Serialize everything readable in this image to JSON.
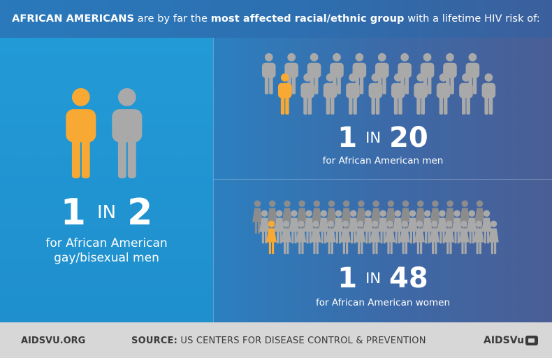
{
  "header": {
    "part1": "AFRICAN AMERICANS",
    "part2": " are by far the ",
    "part3": "most affected racial/ethnic group",
    "part4": " with a lifetime HIV risk of:"
  },
  "stats": [
    {
      "num": "1",
      "in": "IN",
      "den": "2",
      "caption_line1": "for African American",
      "caption_line2": "gay/bisexual men"
    },
    {
      "num": "1",
      "in": "IN",
      "den": "20",
      "caption_line1": "for African American men"
    },
    {
      "num": "1",
      "in": "IN",
      "den": "48",
      "caption_line1": "for African American women"
    }
  ],
  "footer": {
    "site": "AIDSVU.ORG",
    "source_label": "SOURCE:",
    "source_text": " US CENTERS FOR DISEASE CONTROL & PREVENTION",
    "logo_text": "AIDSVu"
  },
  "colors": {
    "highlight": "#f7a933",
    "figure": "#a9a9a9",
    "figure_dark": "#8c8c8c"
  },
  "icons": {
    "male": "male-figure-icon",
    "female": "female-figure-icon",
    "logo": "speech-bubble-icon"
  }
}
